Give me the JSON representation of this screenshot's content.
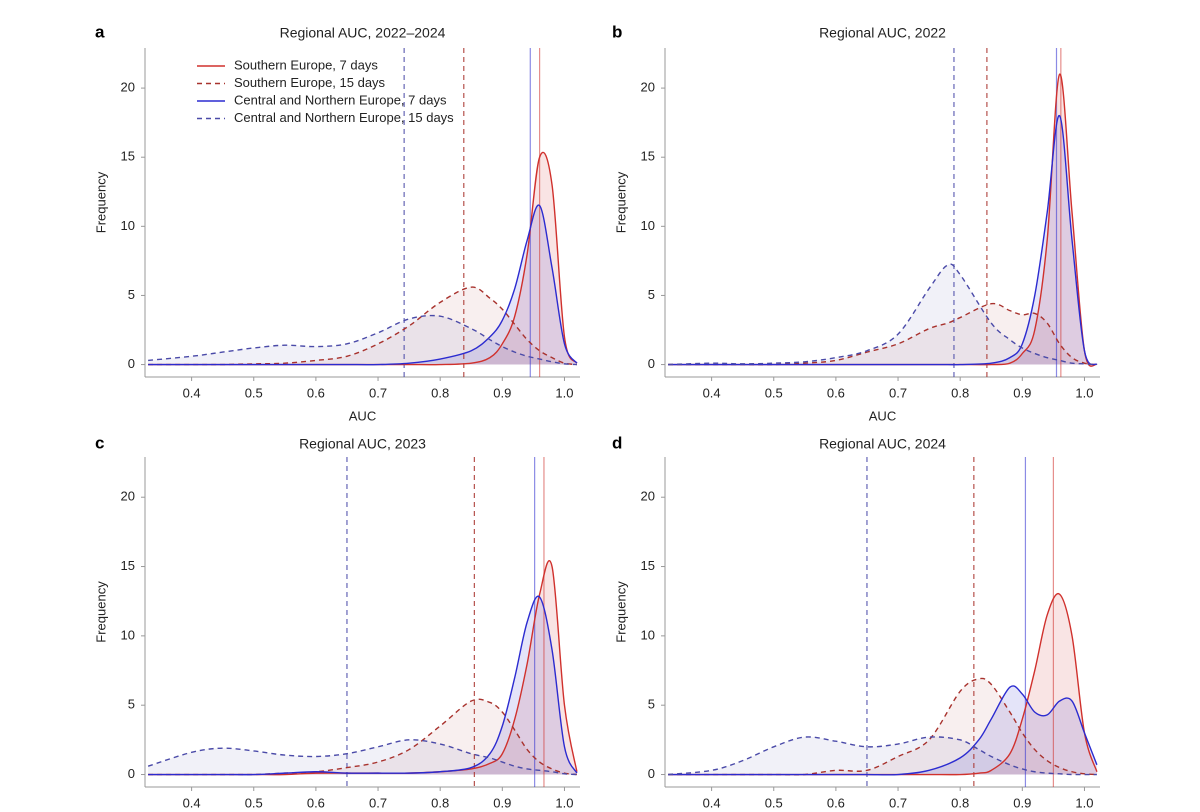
{
  "chart_data": [
    {
      "type": "density",
      "letter": "a",
      "title": "Regional AUC, 2022–2024",
      "x_label": "AUC",
      "y_label": "Frequency",
      "legend": "upper left",
      "xlim": [
        0.325,
        1.025
      ],
      "ylim": [
        -0.9,
        22.9
      ],
      "xticks": [
        0.4,
        0.5,
        0.6,
        0.7,
        0.8,
        0.9,
        {
          "value": 1,
          "label": "1.0"
        }
      ],
      "yticks": [
        0,
        5,
        10,
        15,
        20
      ],
      "x": [
        0.33,
        0.4,
        0.45,
        0.5,
        0.55,
        0.6,
        0.65,
        0.7,
        0.75,
        0.8,
        0.85,
        0.88,
        0.9,
        0.92,
        0.94,
        0.96,
        0.98,
        1.0,
        1.02
      ],
      "series": [
        {
          "name": "Southern Europe, 7 days",
          "color": "#d0312d",
          "style": "solid",
          "median": 0.96,
          "values": [
            0,
            0,
            0,
            0,
            0,
            0,
            0,
            0,
            0,
            0,
            0.1,
            0.5,
            1.5,
            3.5,
            8,
            15,
            13,
            2,
            0.1
          ]
        },
        {
          "name": "Southern Europe, 15 days",
          "color": "#a8322d",
          "style": "dashed",
          "median": 0.838,
          "values": [
            0,
            0,
            0,
            0.05,
            0.1,
            0.3,
            0.6,
            1.5,
            2.8,
            4.5,
            5.6,
            4.8,
            4,
            2.9,
            1.8,
            1,
            0.5,
            0.1,
            0
          ]
        },
        {
          "name": "Central and Northern Europe, 7 days",
          "color": "#2b2bd0",
          "style": "solid",
          "median": 0.945,
          "values": [
            0,
            0,
            0,
            0,
            0,
            0,
            0,
            0,
            0.1,
            0.4,
            1,
            2,
            3.2,
            5.5,
            9,
            11.5,
            7,
            1.5,
            0.1
          ]
        },
        {
          "name": "Central and Northern Europe, 15 days",
          "color": "#4a4aa8",
          "style": "dashed",
          "median": 0.742,
          "values": [
            0.3,
            0.6,
            0.9,
            1.2,
            1.4,
            1.3,
            1.5,
            2.3,
            3.3,
            3.5,
            2.6,
            1.8,
            1.3,
            0.9,
            0.6,
            0.4,
            0.2,
            0.05,
            0
          ]
        }
      ]
    },
    {
      "type": "density",
      "letter": "b",
      "title": "Regional AUC, 2022",
      "x_label": "AUC",
      "y_label": "Frequency",
      "xlim": [
        0.325,
        1.025
      ],
      "ylim": [
        -0.9,
        22.9
      ],
      "xticks": [
        0.4,
        0.5,
        0.6,
        0.7,
        0.8,
        0.9,
        {
          "value": 1,
          "label": "1.0"
        }
      ],
      "yticks": [
        0,
        5,
        10,
        15,
        20
      ],
      "x": [
        0.33,
        0.4,
        0.45,
        0.5,
        0.55,
        0.6,
        0.65,
        0.7,
        0.75,
        0.78,
        0.8,
        0.85,
        0.88,
        0.9,
        0.92,
        0.94,
        0.96,
        0.98,
        1.0,
        1.02
      ],
      "series": [
        {
          "color": "#d0312d",
          "style": "solid",
          "median": 0.962,
          "values": [
            0,
            0,
            0,
            0,
            0,
            0,
            0,
            0,
            0,
            0,
            0,
            0,
            0.1,
            0.8,
            2.5,
            9,
            21,
            11,
            1,
            0
          ]
        },
        {
          "color": "#a8322d",
          "style": "dashed",
          "median": 0.843,
          "values": [
            0,
            0,
            0,
            0,
            0.1,
            0.3,
            0.9,
            1.5,
            2.6,
            3,
            3.4,
            4.4,
            3.9,
            3.6,
            3.7,
            3,
            1.5,
            0.5,
            0.1,
            0
          ]
        },
        {
          "color": "#2b2bd0",
          "style": "solid",
          "median": 0.955,
          "values": [
            0,
            0,
            0,
            0,
            0,
            0,
            0,
            0,
            0,
            0,
            0,
            0.1,
            0.5,
            1.5,
            5,
            11,
            18,
            9,
            1,
            0
          ]
        },
        {
          "color": "#4a4aa8",
          "style": "dashed",
          "median": 0.79,
          "values": [
            0,
            0.1,
            0.05,
            0.1,
            0.2,
            0.5,
            1,
            2.2,
            5.5,
            7.2,
            6.5,
            3,
            1.8,
            1.2,
            0.8,
            0.5,
            0.3,
            0.1,
            0.05,
            0
          ]
        }
      ]
    },
    {
      "type": "density",
      "letter": "c",
      "title": "Regional AUC, 2023",
      "y_label": "Frequency",
      "xlim": [
        0.325,
        1.025
      ],
      "ylim": [
        -0.9,
        22.9
      ],
      "xticks": [
        0.4,
        0.5,
        0.6,
        0.7,
        0.8,
        0.9,
        {
          "value": 1,
          "label": "1.0"
        }
      ],
      "yticks": [
        0,
        5,
        10,
        15,
        20
      ],
      "x": [
        0.33,
        0.4,
        0.45,
        0.5,
        0.55,
        0.6,
        0.65,
        0.7,
        0.75,
        0.8,
        0.85,
        0.88,
        0.9,
        0.92,
        0.94,
        0.96,
        0.98,
        1.0,
        1.02
      ],
      "series": [
        {
          "color": "#d0312d",
          "style": "solid",
          "median": 0.967,
          "values": [
            0,
            0,
            0,
            0,
            0,
            0.1,
            0.1,
            0.1,
            0.1,
            0.2,
            0.4,
            0.8,
            1.5,
            4,
            8,
            13,
            15,
            5,
            0.2
          ]
        },
        {
          "color": "#a8322d",
          "style": "dashed",
          "median": 0.855,
          "values": [
            0,
            0,
            0,
            0,
            0.1,
            0.2,
            0.5,
            0.9,
            1.8,
            3.5,
            5.3,
            5.2,
            4.5,
            3.2,
            1.8,
            0.9,
            0.4,
            0.1,
            0
          ]
        },
        {
          "color": "#2b2bd0",
          "style": "solid",
          "median": 0.952,
          "values": [
            0,
            0,
            0,
            0,
            0.1,
            0.2,
            0.1,
            0.1,
            0.1,
            0.2,
            0.5,
            1.5,
            3.5,
            7,
            11,
            12.8,
            9,
            2,
            0.1
          ]
        },
        {
          "color": "#4a4aa8",
          "style": "dashed",
          "median": 0.65,
          "values": [
            0.6,
            1.6,
            1.9,
            1.7,
            1.4,
            1.3,
            1.5,
            2,
            2.5,
            2.2,
            1.5,
            1.2,
            0.9,
            0.6,
            0.4,
            0.3,
            0.2,
            0.05,
            0
          ]
        }
      ]
    },
    {
      "type": "density",
      "letter": "d",
      "title": "Regional AUC, 2024",
      "y_label": "Frequency",
      "xlim": [
        0.325,
        1.025
      ],
      "ylim": [
        -0.9,
        22.9
      ],
      "xticks": [
        0.4,
        0.5,
        0.6,
        0.7,
        0.8,
        0.9,
        {
          "value": 1,
          "label": "1.0"
        }
      ],
      "yticks": [
        0,
        5,
        10,
        15,
        20
      ],
      "x": [
        0.33,
        0.4,
        0.45,
        0.5,
        0.55,
        0.6,
        0.65,
        0.7,
        0.75,
        0.8,
        0.83,
        0.85,
        0.88,
        0.9,
        0.92,
        0.94,
        0.96,
        0.98,
        1.0,
        1.02
      ],
      "series": [
        {
          "color": "#d0312d",
          "style": "solid",
          "median": 0.95,
          "values": [
            0,
            0,
            0,
            0,
            0,
            0,
            0,
            0,
            0,
            0,
            0.1,
            0.3,
            1.5,
            4,
            7.5,
            11.5,
            13,
            10,
            3,
            0.2
          ]
        },
        {
          "color": "#a8322d",
          "style": "dashed",
          "median": 0.822,
          "values": [
            0,
            0,
            0,
            0,
            0,
            0.3,
            0.3,
            1.3,
            2.5,
            6,
            6.9,
            6.5,
            4.5,
            3,
            1.8,
            1,
            0.5,
            0.2,
            0.05,
            0
          ]
        },
        {
          "color": "#2b2bd0",
          "style": "solid",
          "median": 0.905,
          "values": [
            0,
            0,
            0,
            0,
            0,
            0,
            0,
            0,
            0.3,
            1.2,
            2.5,
            4,
            6.3,
            5.8,
            4.5,
            4.3,
            5.3,
            5.3,
            3,
            0.7
          ]
        },
        {
          "color": "#4a4aa8",
          "style": "dashed",
          "median": 0.65,
          "values": [
            0,
            0.3,
            1,
            2,
            2.7,
            2.4,
            2,
            2.2,
            2.7,
            2.5,
            1.8,
            1.3,
            0.7,
            0.4,
            0.2,
            0.1,
            0.05,
            0,
            0,
            0
          ]
        }
      ]
    }
  ]
}
